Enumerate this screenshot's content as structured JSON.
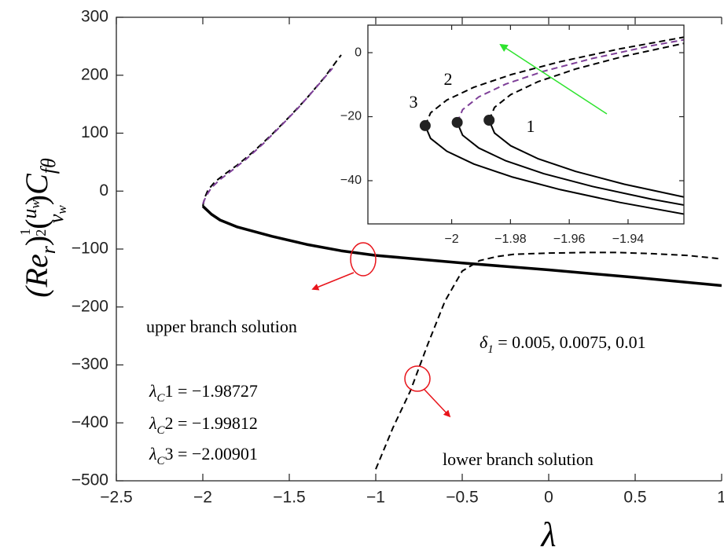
{
  "chart_data": [
    {
      "type": "line",
      "xlabel": "λ",
      "ylabel_parts": [
        "(Re",
        "r",
        ")",
        "1",
        "2",
        "(",
        "u",
        "w",
        "v",
        "w",
        ")",
        "C",
        "fθ"
      ],
      "xlim": [
        -2.5,
        1
      ],
      "ylim": [
        -500,
        300
      ],
      "xticks": [
        {
          "value": -2.5,
          "label": "−2.5"
        },
        {
          "value": -2,
          "label": "−2"
        },
        {
          "value": -1.5,
          "label": "−1.5"
        },
        {
          "value": -1,
          "label": "−1"
        },
        {
          "value": -0.5,
          "label": "−0.5"
        },
        0,
        0.5,
        1
      ],
      "yticks": [
        {
          "value": -500,
          "label": "−500"
        },
        {
          "value": -400,
          "label": "−400"
        },
        {
          "value": -300,
          "label": "−300"
        },
        {
          "value": -200,
          "label": "−200"
        },
        {
          "value": -100,
          "label": "−100"
        },
        0,
        100,
        200,
        300
      ],
      "series": [
        {
          "color": "#000000",
          "dashed": false,
          "line_width": 3.5,
          "x": [
            -2.0,
            -1.95,
            -1.9,
            -1.8,
            -1.6,
            -1.4,
            -1.2,
            -1,
            -0.5,
            0,
            0.5,
            1
          ],
          "values": [
            -26,
            -40,
            -50,
            -62,
            -78,
            -92,
            -103,
            -111,
            -124,
            -136,
            -149,
            -163
          ]
        },
        {
          "color": "#000000",
          "dashed": true,
          "line_width": 2,
          "x": [
            -2.0,
            -1.99,
            -1.97,
            -1.93,
            -1.87,
            -1.8,
            -1.7,
            -1.6,
            -1.5,
            -1.4,
            -1.3,
            -1.2
          ],
          "values": [
            -26,
            -12,
            2,
            16,
            30,
            45,
            70,
            98,
            128,
            160,
            195,
            235
          ]
        },
        {
          "color": "#7e3f98",
          "dashed": true,
          "line_width": 2,
          "x": [
            -2.0,
            -1.98,
            -1.95,
            -1.9,
            -1.83,
            -1.75,
            -1.65,
            -1.55,
            -1.45,
            -1.35,
            -1.25
          ],
          "values": [
            -22,
            -8,
            6,
            20,
            36,
            55,
            82,
            112,
            143,
            177,
            212
          ]
        },
        {
          "color": "#000000",
          "dashed": true,
          "line_width": 2,
          "x": [
            -1,
            -0.9,
            -0.8,
            -0.7,
            -0.6,
            -0.5,
            -0.4,
            -0.3,
            -0.2,
            0,
            0.2,
            0.4,
            0.6,
            0.8,
            1
          ],
          "values": [
            -480,
            -408,
            -345,
            -265,
            -190,
            -138,
            -120,
            -113,
            -109,
            -107,
            -106,
            -106,
            -108,
            -111,
            -117
          ]
        }
      ],
      "annotations": [
        {
          "parts": [
            "upper branch solution"
          ]
        },
        {
          "parts": [
            "δ",
            "1",
            " = 0.005, 0.0075, 0.01"
          ]
        },
        {
          "parts": [
            "λ",
            "C",
            "1 = −1.98727"
          ]
        },
        {
          "parts": [
            "λ",
            "C",
            "2 = −1.99812"
          ]
        },
        {
          "parts": [
            "λ",
            "C",
            "3 = −2.00901"
          ]
        },
        {
          "parts": [
            "lower branch solution"
          ]
        }
      ]
    },
    {
      "type": "line",
      "xlim": [
        -2.0285,
        -1.921
      ],
      "ylim": [
        -53.5,
        8.6
      ],
      "xticks": [
        {
          "value": -2,
          "label": "−2"
        },
        {
          "value": -1.98,
          "label": "−1.98"
        },
        {
          "value": -1.96,
          "label": "−1.96"
        },
        {
          "value": -1.94,
          "label": "−1.94"
        }
      ],
      "yticks": [
        {
          "value": -40,
          "label": "−40"
        },
        {
          "value": -20,
          "label": "−20"
        },
        0
      ],
      "series": [
        {
          "color": "#000000",
          "dashed": false,
          "line_width": 2,
          "marker": true,
          "x": [
            -1.98727,
            -1.98543,
            -1.97991,
            -1.97071,
            -1.95783,
            -1.94127,
            -1.92103
          ],
          "values": [
            -21.1,
            -25.1,
            -29.1,
            -33.1,
            -37.1,
            -41.1,
            -45.1
          ]
        },
        {
          "color": "#000000",
          "dashed": true,
          "line_width": 2,
          "x": [
            -1.98727,
            -1.98543,
            -1.97991,
            -1.97071,
            -1.95783,
            -1.94127,
            -1.92103
          ],
          "values": [
            -21.1,
            -17.1,
            -13.1,
            -9.1,
            -5.1,
            -1.1,
            2.9
          ]
        },
        {
          "color": "#000000",
          "dashed": false,
          "line_width": 2,
          "marker": true,
          "x": [
            -1.99812,
            -1.99628,
            -1.99076,
            -1.98156,
            -1.96868,
            -1.95212,
            -1.93188,
            -1.90796
          ],
          "values": [
            -21.8,
            -25.8,
            -29.8,
            -33.8,
            -37.8,
            -41.8,
            -45.8,
            -49.8
          ]
        },
        {
          "color": "#7e3f98",
          "dashed": true,
          "line_width": 2,
          "x": [
            -1.99812,
            -1.99628,
            -1.99076,
            -1.98156,
            -1.96868,
            -1.95212,
            -1.93188,
            -1.90796
          ],
          "values": [
            -21.8,
            -17.8,
            -13.8,
            -9.8,
            -5.8,
            -1.8,
            2.2,
            6.2
          ]
        },
        {
          "color": "#000000",
          "dashed": false,
          "line_width": 2,
          "marker": true,
          "x": [
            -2.00901,
            -2.00717,
            -2.00165,
            -1.99245,
            -1.97957,
            -1.96301,
            -1.94277,
            -1.91885
          ],
          "values": [
            -22.8,
            -26.8,
            -30.8,
            -34.8,
            -38.8,
            -42.8,
            -46.8,
            -50.8
          ]
        },
        {
          "color": "#000000",
          "dashed": true,
          "line_width": 2,
          "x": [
            -2.00901,
            -2.00717,
            -2.00165,
            -1.99245,
            -1.97957,
            -1.96301,
            -1.94277,
            -1.91885
          ],
          "values": [
            -22.8,
            -18.8,
            -14.8,
            -10.8,
            -6.8,
            -2.8,
            1.2,
            5.2
          ]
        }
      ],
      "annotations": [
        {
          "parts": [
            "1"
          ]
        },
        {
          "parts": [
            "2"
          ]
        },
        {
          "parts": [
            "3"
          ]
        }
      ]
    }
  ]
}
